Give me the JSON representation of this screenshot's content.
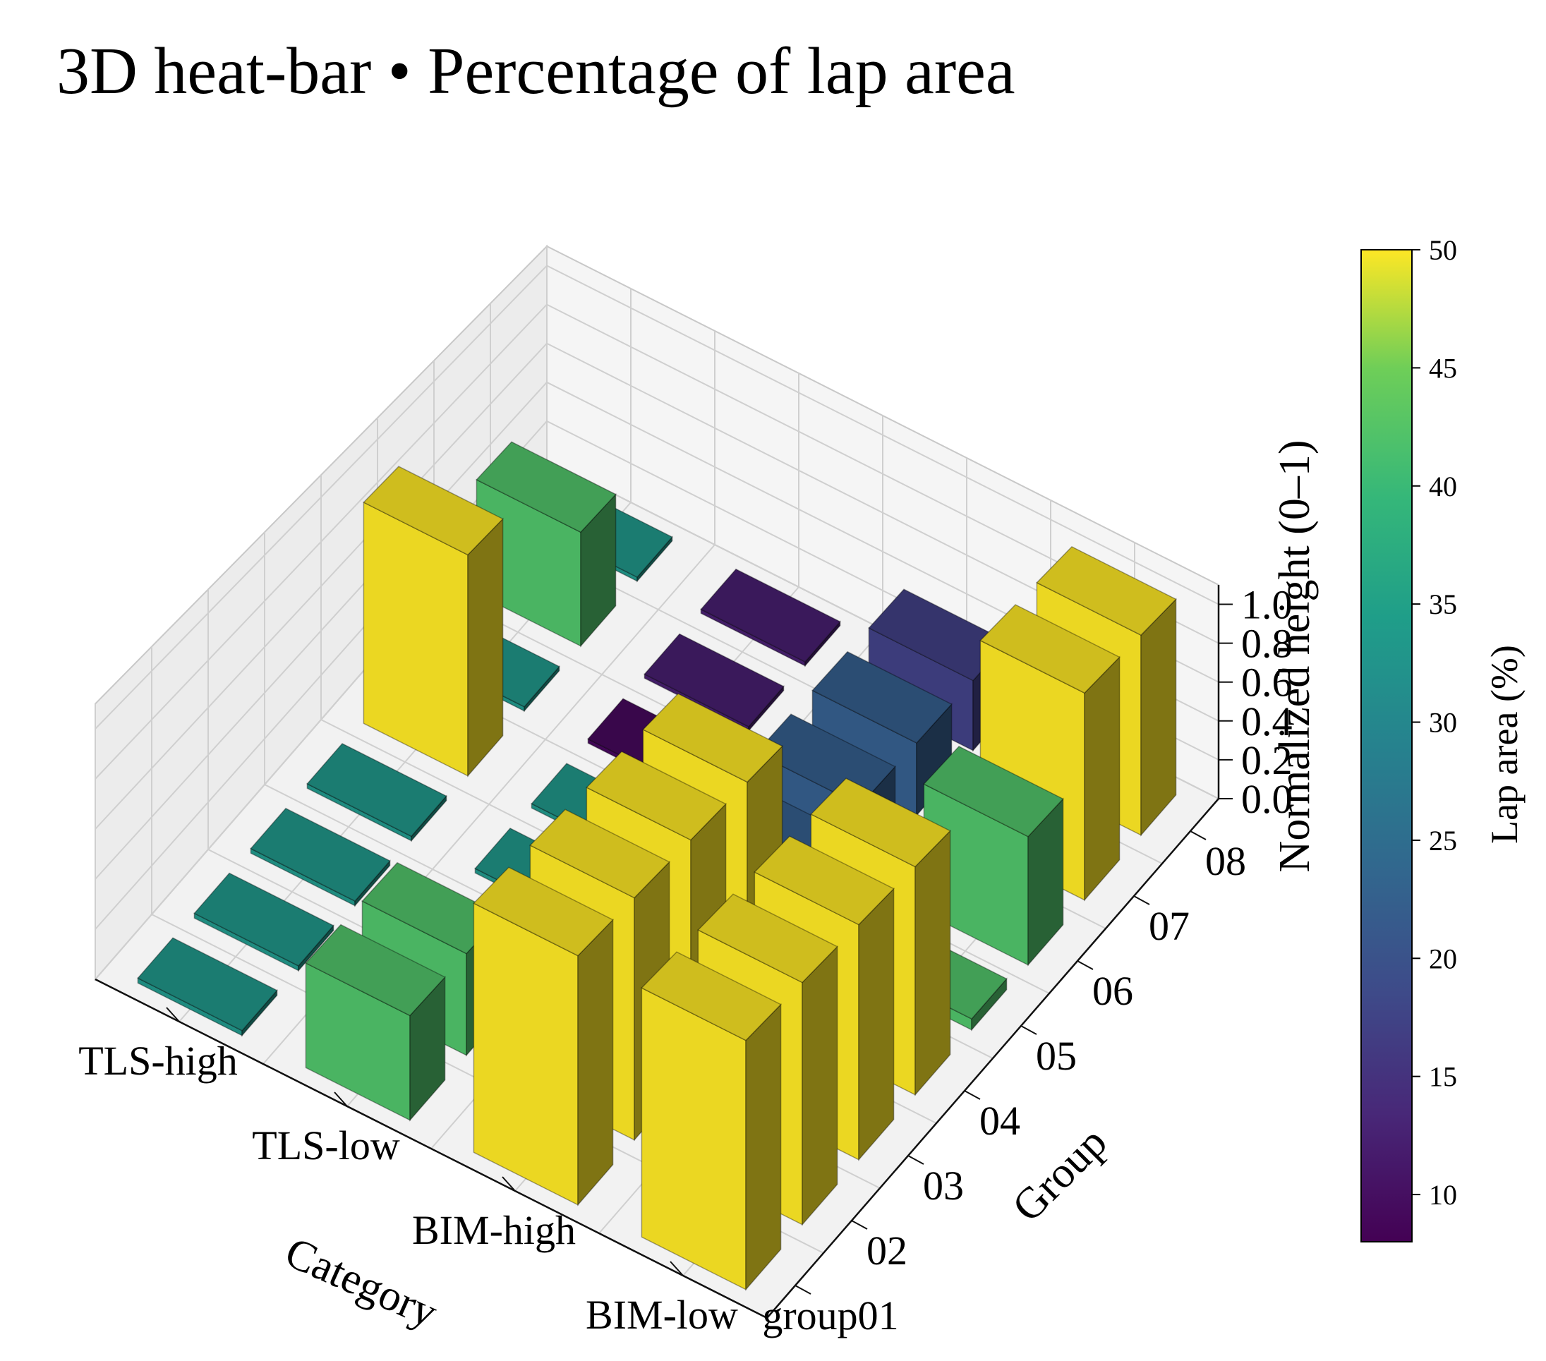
{
  "chart_data": {
    "type": "bar3d",
    "title": "3D heat-bar • Percentage of lap area",
    "categories": [
      "BIM-low",
      "BIM-high",
      "TLS-low",
      "TLS-high"
    ],
    "groups": [
      "group01",
      "02",
      "03",
      "04",
      "05",
      "06",
      "07",
      "08"
    ],
    "xlabel": "Category",
    "ylabel": "Group",
    "zlabel": "Normalized height (0–1)",
    "zlim": [
      0,
      1.1
    ],
    "zticks": [
      "0.0",
      "0.2",
      "0.4",
      "0.6",
      "0.8",
      "1.0"
    ],
    "colorbar": {
      "label": "Lap area (%)",
      "range": [
        8,
        50
      ],
      "ticks": [
        "10",
        "15",
        "20",
        "25",
        "30",
        "35",
        "40",
        "45",
        "50"
      ]
    },
    "cells": [
      {
        "category": "BIM-low",
        "group": "group01",
        "height": 1.0,
        "lap_area": 50
      },
      {
        "category": "BIM-low",
        "group": "02",
        "height": 1.0,
        "lap_area": 50
      },
      {
        "category": "BIM-low",
        "group": "03",
        "height": 1.0,
        "lap_area": 50
      },
      {
        "category": "BIM-low",
        "group": "04",
        "height": 1.0,
        "lap_area": 50
      },
      {
        "category": "BIM-low",
        "group": "05",
        "height": 0.05,
        "lap_area": 42
      },
      {
        "category": "BIM-low",
        "group": "06",
        "height": 0.6,
        "lap_area": 42
      },
      {
        "category": "BIM-low",
        "group": "07",
        "height": 1.0,
        "lap_area": 50
      },
      {
        "category": "BIM-low",
        "group": "08",
        "height": 1.0,
        "lap_area": 50
      },
      {
        "category": "BIM-high",
        "group": "group01",
        "height": 1.0,
        "lap_area": 50
      },
      {
        "category": "BIM-high",
        "group": "02",
        "height": 1.0,
        "lap_area": 50
      },
      {
        "category": "BIM-high",
        "group": "03",
        "height": 1.0,
        "lap_area": 50
      },
      {
        "category": "BIM-high",
        "group": "04",
        "height": 1.0,
        "lap_area": 50
      },
      {
        "category": "BIM-high",
        "group": "05",
        "height": 0.35,
        "lap_area": 22
      },
      {
        "category": "BIM-high",
        "group": "06",
        "height": 0.35,
        "lap_area": 22
      },
      {
        "category": "BIM-high",
        "group": "07",
        "height": 0.35,
        "lap_area": 22
      },
      {
        "category": "BIM-high",
        "group": "08",
        "height": 0.35,
        "lap_area": 17
      },
      {
        "category": "TLS-low",
        "group": "group01",
        "height": 0.42,
        "lap_area": 42
      },
      {
        "category": "TLS-low",
        "group": "02",
        "height": 0.42,
        "lap_area": 42
      },
      {
        "category": "TLS-low",
        "group": "03",
        "height": 0.02,
        "lap_area": 33
      },
      {
        "category": "TLS-low",
        "group": "04",
        "height": 0.02,
        "lap_area": 33
      },
      {
        "category": "TLS-low",
        "group": "05",
        "height": 0.02,
        "lap_area": 33
      },
      {
        "category": "TLS-low",
        "group": "06",
        "height": 0.02,
        "lap_area": 9
      },
      {
        "category": "TLS-low",
        "group": "07",
        "height": 0.02,
        "lap_area": 12
      },
      {
        "category": "TLS-low",
        "group": "08",
        "height": 0.02,
        "lap_area": 12
      },
      {
        "category": "TLS-high",
        "group": "group01",
        "height": 0.02,
        "lap_area": 33
      },
      {
        "category": "TLS-high",
        "group": "02",
        "height": 0.02,
        "lap_area": 33
      },
      {
        "category": "TLS-high",
        "group": "03",
        "height": 0.02,
        "lap_area": 33
      },
      {
        "category": "TLS-high",
        "group": "04",
        "height": 0.02,
        "lap_area": 33
      },
      {
        "category": "TLS-high",
        "group": "05",
        "height": 1.0,
        "lap_area": 50
      },
      {
        "category": "TLS-high",
        "group": "06",
        "height": 0.02,
        "lap_area": 33
      },
      {
        "category": "TLS-high",
        "group": "07",
        "height": 0.55,
        "lap_area": 42
      },
      {
        "category": "TLS-high",
        "group": "08",
        "height": 0.02,
        "lap_area": 33
      }
    ]
  }
}
